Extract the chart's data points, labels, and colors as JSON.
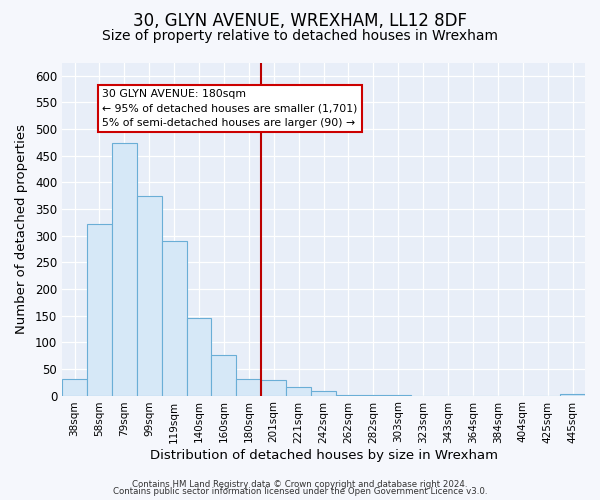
{
  "title": "30, GLYN AVENUE, WREXHAM, LL12 8DF",
  "subtitle": "Size of property relative to detached houses in Wrexham",
  "xlabel": "Distribution of detached houses by size in Wrexham",
  "ylabel": "Number of detached properties",
  "bar_labels": [
    "38sqm",
    "58sqm",
    "79sqm",
    "99sqm",
    "119sqm",
    "140sqm",
    "160sqm",
    "180sqm",
    "201sqm",
    "221sqm",
    "242sqm",
    "262sqm",
    "282sqm",
    "303sqm",
    "323sqm",
    "343sqm",
    "364sqm",
    "384sqm",
    "404sqm",
    "425sqm",
    "445sqm"
  ],
  "bar_values": [
    32,
    322,
    474,
    374,
    290,
    145,
    76,
    32,
    29,
    17,
    8,
    2,
    1,
    1,
    0,
    0,
    0,
    0,
    0,
    0,
    3
  ],
  "bar_color": "#d6e8f7",
  "bar_edge_color": "#6aaed6",
  "vline_color": "#bb0000",
  "annotation_title": "30 GLYN AVENUE: 180sqm",
  "annotation_line1": "← 95% of detached houses are smaller (1,701)",
  "annotation_line2": "5% of semi-detached houses are larger (90) →",
  "annotation_box_facecolor": "#ffffff",
  "annotation_box_edgecolor": "#cc0000",
  "ylim": [
    0,
    625
  ],
  "yticks": [
    0,
    50,
    100,
    150,
    200,
    250,
    300,
    350,
    400,
    450,
    500,
    550,
    600
  ],
  "plot_bg_color": "#e8eef8",
  "fig_bg_color": "#f5f7fc",
  "grid_color": "#ffffff",
  "footer1": "Contains HM Land Registry data © Crown copyright and database right 2024.",
  "footer2": "Contains public sector information licensed under the Open Government Licence v3.0.",
  "title_fontsize": 12,
  "subtitle_fontsize": 10
}
